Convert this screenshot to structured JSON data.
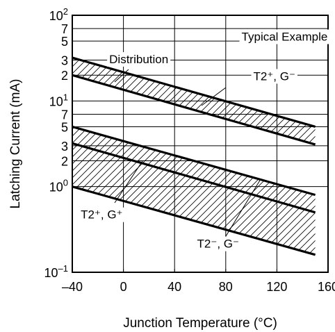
{
  "chart_data": {
    "type": "line",
    "title": "",
    "xlabel": "Junction Temperature  (°C)",
    "ylabel": "Latching Current  (mA)",
    "x_scale": "linear",
    "y_scale": "log",
    "xlim": [
      -40,
      160
    ],
    "ylim": [
      0.1,
      100
    ],
    "x_ticks": [
      {
        "value": -40,
        "label": "–40"
      },
      {
        "value": 0,
        "label": "0"
      },
      {
        "value": 40,
        "label": "40"
      },
      {
        "value": 80,
        "label": "80"
      },
      {
        "value": 120,
        "label": "120"
      },
      {
        "value": 160,
        "label": "160"
      }
    ],
    "y_decades": [
      {
        "value": 0.1,
        "base": "10",
        "exp": "–1"
      },
      {
        "value": 1,
        "base": "10",
        "exp": "0"
      },
      {
        "value": 10,
        "base": "10",
        "exp": "1"
      },
      {
        "value": 100,
        "base": "10",
        "exp": "2"
      }
    ],
    "y_minor_ticks": [
      {
        "value": 2,
        "label": "2"
      },
      {
        "value": 3,
        "label": "3"
      },
      {
        "value": 5,
        "label": "5"
      },
      {
        "value": 7,
        "label": "7"
      },
      {
        "value": 20,
        "label": "2"
      },
      {
        "value": 30,
        "label": "3"
      },
      {
        "value": 50,
        "label": "5"
      },
      {
        "value": 70,
        "label": "7"
      }
    ],
    "y_minor_gridlines": [
      2,
      3,
      5,
      7,
      20,
      30,
      50,
      70
    ],
    "grid": true,
    "series": [
      {
        "x": [
          -40,
          150
        ],
        "y": [
          32,
          5
        ]
      },
      {
        "x": [
          -40,
          150
        ],
        "y": [
          20,
          3.1
        ]
      },
      {
        "x": [
          -40,
          150
        ],
        "y": [
          5,
          0.8
        ]
      },
      {
        "x": [
          -40,
          150
        ],
        "y": [
          3.2,
          0.5
        ]
      },
      {
        "x": [
          -40,
          150
        ],
        "y": [
          1,
          0.16
        ]
      }
    ],
    "hatched_bands": [
      {
        "between": [
          0,
          1
        ]
      },
      {
        "between": [
          2,
          4
        ]
      }
    ],
    "annotations": [
      {
        "text": "Typical Example",
        "x": 126,
        "y": 55
      },
      {
        "text": "Distribution",
        "x": 12,
        "y": 30
      },
      {
        "text": "T2⁺, G⁻",
        "x": 118,
        "y": 19
      },
      {
        "text": "T2⁺, G⁺",
        "x": -17,
        "y": 0.46
      },
      {
        "text": "T2⁻, G⁻",
        "x": 74,
        "y": 0.21
      }
    ]
  }
}
